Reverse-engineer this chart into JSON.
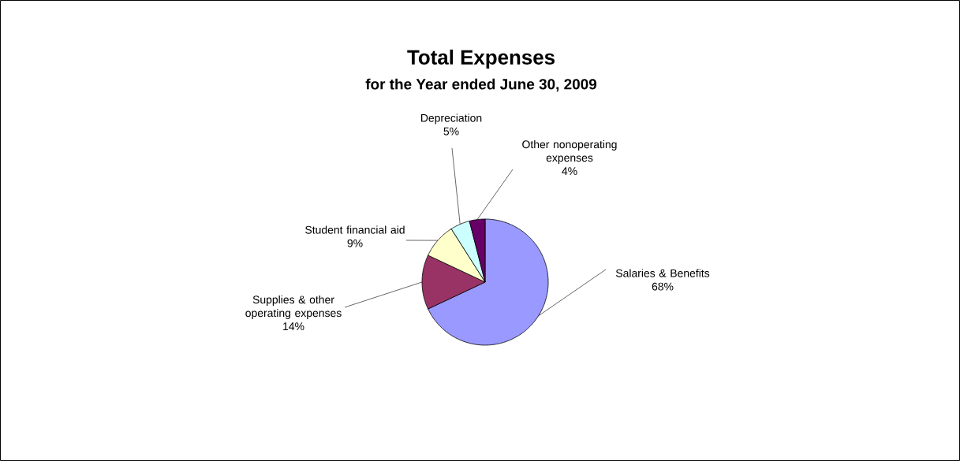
{
  "chart_data": {
    "type": "pie",
    "title": "Total Expenses",
    "subtitle": "for the Year ended June 30, 2009",
    "categories": [
      "Salaries & Benefits",
      "Supplies & other operating expenses",
      "Student financial aid",
      "Depreciation",
      "Other nonoperating expenses"
    ],
    "values": [
      68,
      14,
      9,
      5,
      4
    ],
    "value_labels": [
      "68%",
      "14%",
      "9%",
      "5%",
      "4%"
    ],
    "colors": [
      "#9999ff",
      "#993366",
      "#ffffcc",
      "#ccffff",
      "#660066"
    ]
  }
}
